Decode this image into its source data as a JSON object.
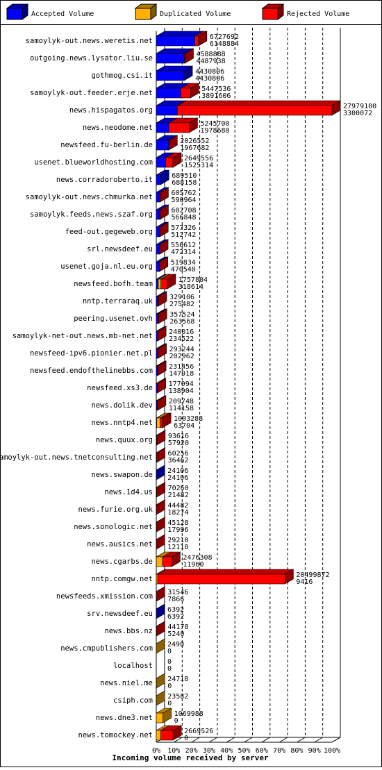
{
  "chart_data": {
    "type": "bar3d-stacked-horizontal",
    "title": "Incoming volume received by server",
    "categories": [
      "samoylyk-out.news.weretis.net",
      "outgoing.news.lysator.liu.se",
      "gothmog.csi.it",
      "samoylyk-out.feeder.erje.net",
      "news.hispagatos.org",
      "news.neodome.net",
      "newsfeed.fu-berlin.de",
      "usenet.blueworldhosting.com",
      "news.corradoroberto.it",
      "samoylyk-out.news.chmurka.net",
      "samoylyk.feeds.news.szaf.org",
      "feed-out.gegeweb.org",
      "srl.newsdeef.eu",
      "usenet.goja.nl.eu.org",
      "newsfeed.bofh.team",
      "nntp.terraraq.uk",
      "peering.usenet.ovh",
      "samoylyk-net-out.news.mb-net.net",
      "newsfeed-ipv6.pionier.net.pl",
      "newsfeed.endofthelinebbs.com",
      "newsfeed.xs3.de",
      "news.dolik.dev",
      "news.nntp4.net",
      "news.quux.org",
      "samoylyk-out.news.tnetconsulting.net",
      "news.swapon.de",
      "news.1d4.us",
      "news.furie.org.uk",
      "news.sonologic.net",
      "news.ausics.net",
      "news.cgarbs.de",
      "nntp.comgw.net",
      "newsfeeds.xmission.com",
      "srv.newsdeef.eu",
      "news.bbs.nz",
      "news.cmpublishers.com",
      "localhost",
      "news.niel.me",
      "csiph.com",
      "news.dne3.net",
      "news.tomockey.net"
    ],
    "series": [
      {
        "name": "Accepted Volume",
        "color": "#0000ff",
        "values": [
          21.98,
          16.04,
          15.84,
          13.91,
          11.79,
          7.07,
          7.03,
          5.45,
          2.46,
          2.11,
          2.03,
          1.83,
          1.69,
          1.68,
          1.14,
          0.98,
          0.94,
          0.84,
          0.73,
          0.53,
          0.5,
          0.41,
          0.23,
          0.21,
          0.13,
          0.09,
          0.08,
          0.07,
          0.06,
          0.04,
          0.04,
          0.03,
          0.03,
          0.02,
          0.02,
          0,
          0,
          0,
          0,
          0,
          0
        ]
      },
      {
        "name": "Duplicated Volume",
        "color": "#ffb000",
        "values": [
          0,
          0,
          0,
          0,
          0.3,
          0,
          0,
          0,
          0,
          0,
          0,
          0,
          0,
          0,
          1.5,
          0,
          0,
          0,
          0,
          0,
          0,
          0,
          2.0,
          0,
          0,
          0,
          0,
          0,
          0,
          0,
          3.5,
          0.8,
          0,
          0,
          0,
          0.01,
          0,
          0.09,
          0.08,
          3.82,
          2.5
        ]
      },
      {
        "name": "Rejected Volume",
        "color": "#ff0000",
        "values": [
          2.07,
          0.36,
          0,
          5.56,
          87.91,
          11.68,
          0.21,
          4.02,
          0.0,
          0.05,
          0.13,
          0.23,
          0.3,
          0.18,
          3.64,
          0.19,
          0.34,
          0.02,
          0.32,
          0.3,
          0.14,
          0.34,
          1.36,
          0.13,
          0.09,
          0,
          0.17,
          0.09,
          0.1,
          0.06,
          5.31,
          72.44,
          0.08,
          0,
          0.14,
          0,
          0,
          0,
          0,
          0,
          7.04
        ]
      }
    ],
    "label_totals": [
      6727692,
      4588888,
      4430806,
      5447536,
      27979100,
      5245700,
      2026552,
      2649556,
      689510,
      605762,
      602708,
      577326,
      556612,
      519834,
      1757804,
      329106,
      357524,
      240016,
      293244,
      231456,
      177094,
      209748,
      1003288,
      93616,
      60256,
      24106,
      70260,
      44482,
      45128,
      29210,
      2476308,
      20499872,
      31546,
      6392,
      44178,
      2490,
      0,
      24718,
      23582,
      1069988,
      2669526
    ],
    "label_accepted": [
      6148884,
      4487938,
      4430806,
      3891606,
      3300072,
      1978680,
      1967682,
      1525314,
      688158,
      590964,
      566848,
      512742,
      472314,
      470540,
      318614,
      275482,
      263568,
      234522,
      202962,
      147918,
      138904,
      114158,
      63704,
      57920,
      36462,
      24106,
      21482,
      18274,
      17996,
      12118,
      11960,
      9416,
      7866,
      6392,
      5240,
      0,
      0,
      0,
      0,
      0,
      0
    ],
    "xlim": [
      0,
      100
    ],
    "xticks": [
      {
        "value": 0,
        "label": "0%"
      },
      {
        "value": 10,
        "label": "10%"
      },
      {
        "value": 20,
        "label": "20%"
      },
      {
        "value": 30,
        "label": "30%"
      },
      {
        "value": 40,
        "label": "40%"
      },
      {
        "value": 50,
        "label": "50%"
      },
      {
        "value": 60,
        "label": "60%"
      },
      {
        "value": 70,
        "label": "70%"
      },
      {
        "value": 80,
        "label": "80%"
      },
      {
        "value": 90,
        "label": "90%"
      },
      {
        "value": 100,
        "label": "100%"
      }
    ],
    "grid": true
  }
}
